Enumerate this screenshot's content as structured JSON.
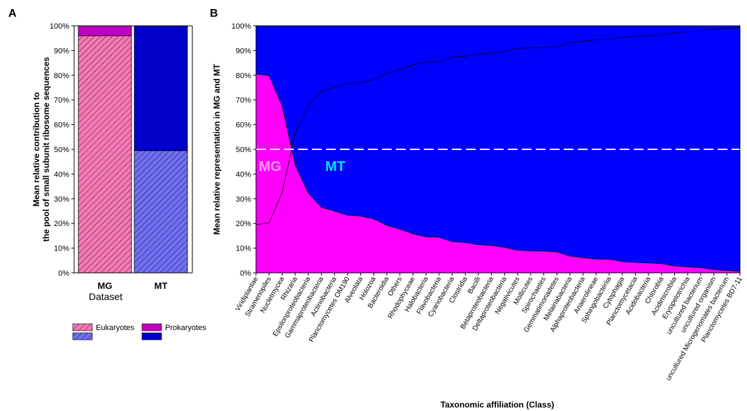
{
  "panel_a": {
    "letter": "A",
    "ylabel_line1": "Mean relative contribution to",
    "ylabel_line2": "the pool of small subunit ribosome sequences",
    "xlabel": "Dataset",
    "legend": [
      {
        "label": "Eukaryotes",
        "colors": [
          "#f27ab5",
          "#7070f0"
        ],
        "hatched": true
      },
      {
        "label": "Prokaryotes",
        "colors": [
          "#c000c0",
          "#0000c8"
        ],
        "hatched": false
      }
    ]
  },
  "panel_b": {
    "letter": "B",
    "ylabel": "Mean relative representation in MG and MT",
    "xlabel": "Taxonomic affiliation (Class)",
    "annotation_mg": "MG",
    "annotation_mt": "MT",
    "colors": {
      "mg": "#ff00ff",
      "mt": "#0000ff",
      "mg_text": "#ff99ff",
      "mt_text": "#00e5ff"
    }
  },
  "chart_data": [
    {
      "type": "bar",
      "stacked": true,
      "categories": [
        "MG",
        "MT"
      ],
      "series": [
        {
          "name": "Eukaryotes",
          "values": [
            96,
            49.5
          ],
          "colors": [
            "#f27ab5",
            "#7070f0"
          ],
          "hatched": true
        },
        {
          "name": "Prokaryotes",
          "values": [
            4,
            50.5
          ],
          "colors": [
            "#c000c0",
            "#0000c8"
          ],
          "hatched": false
        }
      ],
      "ylim": [
        0,
        100
      ],
      "yticks": [
        "0%",
        "10%",
        "20%",
        "30%",
        "40%",
        "50%",
        "60%",
        "70%",
        "80%",
        "90%",
        "100%"
      ],
      "ylabel": "Mean relative contribution to the pool of small subunit ribosome sequences",
      "xlabel": "Dataset",
      "grid": false
    },
    {
      "type": "area",
      "stacked": true,
      "categories": [
        "Viridiplantae",
        "Stramenopiles",
        "Nucletmycea",
        "Rhizaria",
        "Epsilonproteobacteria",
        "Gammaproteobacteria",
        "Actinobacteria",
        "Planctomycetes OM190",
        "Alveolata",
        "Holozoa",
        "Bacteroidia",
        "Others",
        "Rhodophyceae",
        "Halobacteria",
        "Flavobacteria",
        "Cyanobacteria",
        "Clostridia",
        "Bacilli",
        "Betaproteobacteria",
        "Deltaproteobacteria",
        "Negativicutes",
        "Mollicutes",
        "Spirochaetes",
        "Gemmatimonadetes",
        "Melainabacteria",
        "Alphaproteobacteria",
        "Anaerolineae",
        "Sphingobacteriia",
        "Cytophagia",
        "Planctomycetacia",
        "Acidobacteria",
        "Chlorobia",
        "Acidimicrobiia",
        "Erysipelotrichia",
        "uncultured bacterium",
        "uncultured organism",
        "uncultured Microgenomates bacterium",
        "Planctomycetes BD7-11"
      ],
      "series": [
        {
          "name": "MG",
          "values": [
            80.5,
            79.8,
            67.5,
            43.5,
            32.2,
            26.5,
            25,
            23.3,
            23,
            21.8,
            19.2,
            17.7,
            15.8,
            14.6,
            14.4,
            12.6,
            12.3,
            11.4,
            11.1,
            10.3,
            9.1,
            8.9,
            8.8,
            8.5,
            6.8,
            6.2,
            5.6,
            5.5,
            4.6,
            4.2,
            4,
            3.7,
            2.8,
            2.4,
            2.1,
            1.3,
            1,
            0.6
          ]
        },
        {
          "name": "MT",
          "values": [
            19.5,
            20.2,
            32.5,
            56.5,
            67.8,
            73.5,
            75,
            76.7,
            77,
            78.2,
            80.8,
            82.3,
            84.2,
            85.4,
            85.6,
            87.4,
            87.7,
            88.6,
            88.9,
            89.7,
            90.9,
            91.1,
            91.2,
            91.5,
            93.2,
            93.8,
            94.4,
            94.5,
            95.4,
            95.8,
            96,
            96.3,
            97.2,
            97.6,
            97.9,
            98.7,
            99,
            99.4
          ]
        }
      ],
      "reference_line": 50,
      "ylim": [
        0,
        100
      ],
      "yticks": [
        "0%",
        "10%",
        "20%",
        "30%",
        "40%",
        "50%",
        "60%",
        "70%",
        "80%",
        "90%",
        "100%"
      ],
      "ylabel": "Mean relative representation in MG and MT",
      "xlabel": "Taxonomic affiliation (Class)",
      "grid": true
    }
  ]
}
